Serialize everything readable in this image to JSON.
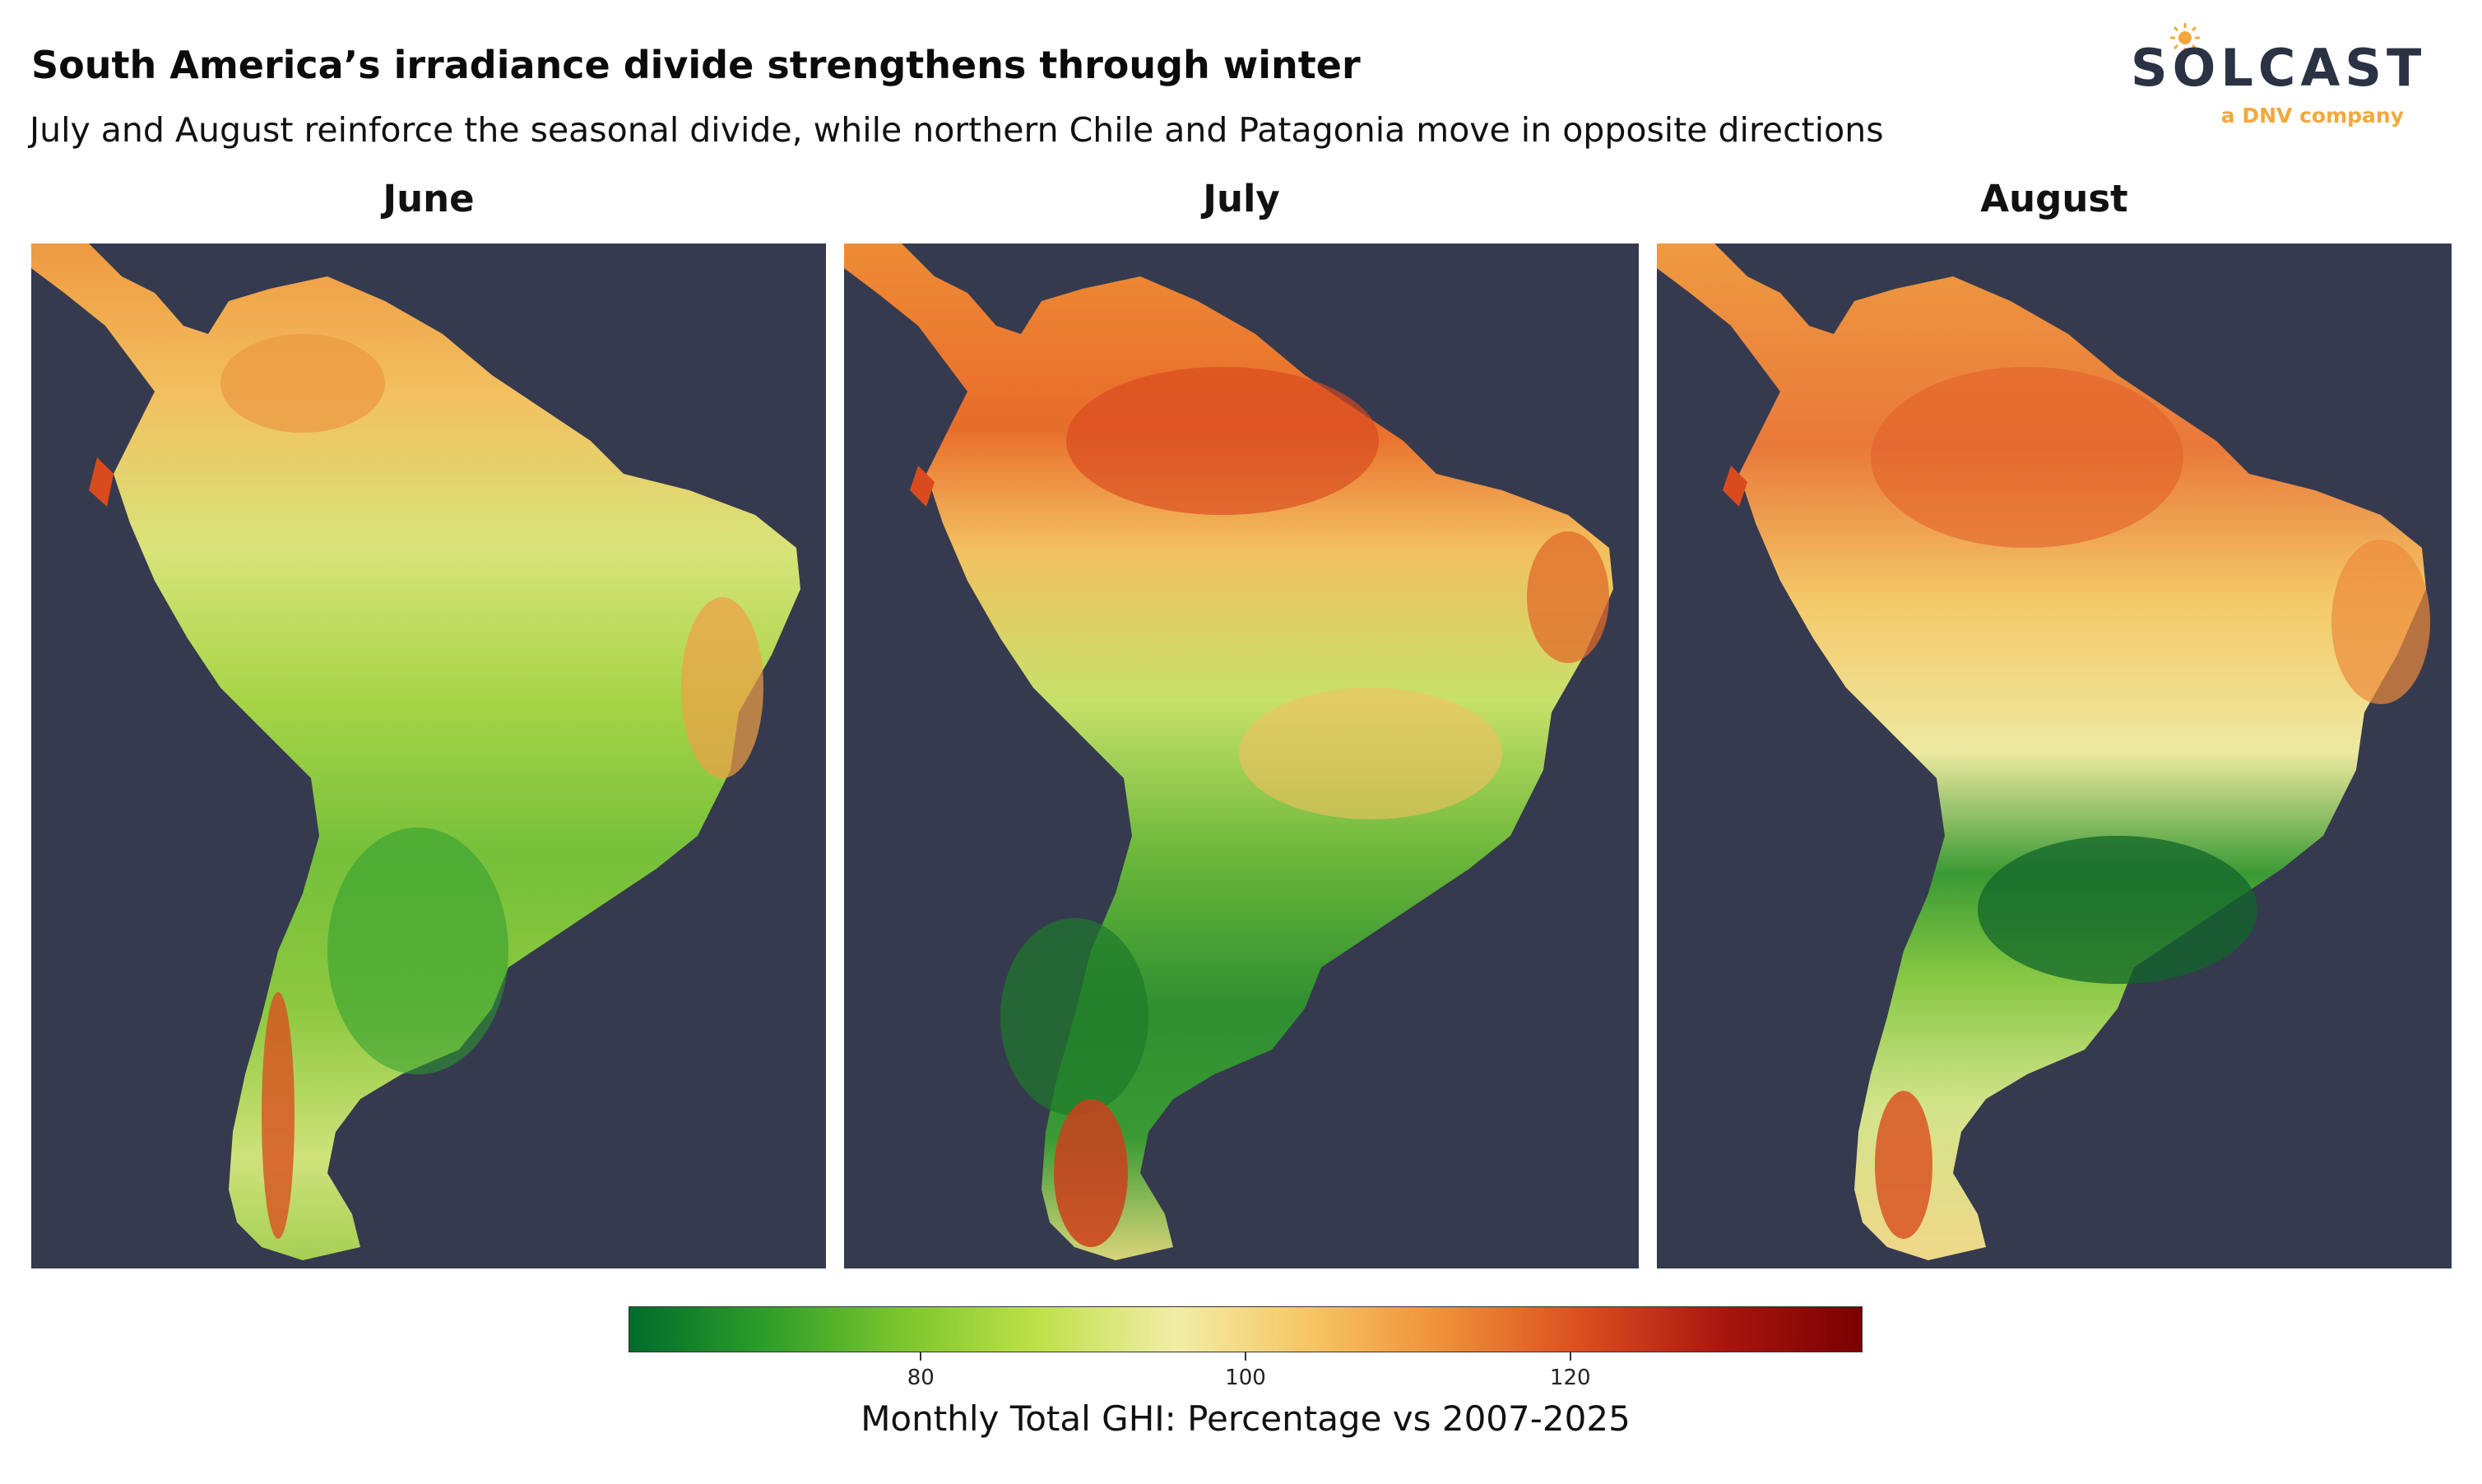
{
  "header": {
    "title": "South America’s irradiance divide strengthens through winter",
    "subtitle": "July and August reinforce the seasonal divide, while northern Chile and Patagonia move in opposite directions"
  },
  "logo": {
    "wordmark": "SOLCAST",
    "tagline": "a DNV company",
    "icon": "sun-icon",
    "colors": {
      "wordmark": "#2a3244",
      "accent": "#f3a83c"
    }
  },
  "panels": [
    {
      "title": "June"
    },
    {
      "title": "July"
    },
    {
      "title": "August"
    }
  ],
  "legend": {
    "label": "Monthly Total GHI: Percentage vs 2007-2025",
    "ticks": [
      "80",
      "100",
      "120"
    ],
    "tick_values": [
      80,
      100,
      120
    ],
    "range": [
      62,
      138
    ],
    "colormap": [
      "#006b2b",
      "#2e9e2a",
      "#7cc62c",
      "#bfe14a",
      "#f2eda6",
      "#f6c460",
      "#ee8c35",
      "#d94b1e",
      "#a8150f",
      "#7a0000"
    ]
  },
  "colors": {
    "ocean": "#363a4f",
    "background": "#ffffff"
  }
}
